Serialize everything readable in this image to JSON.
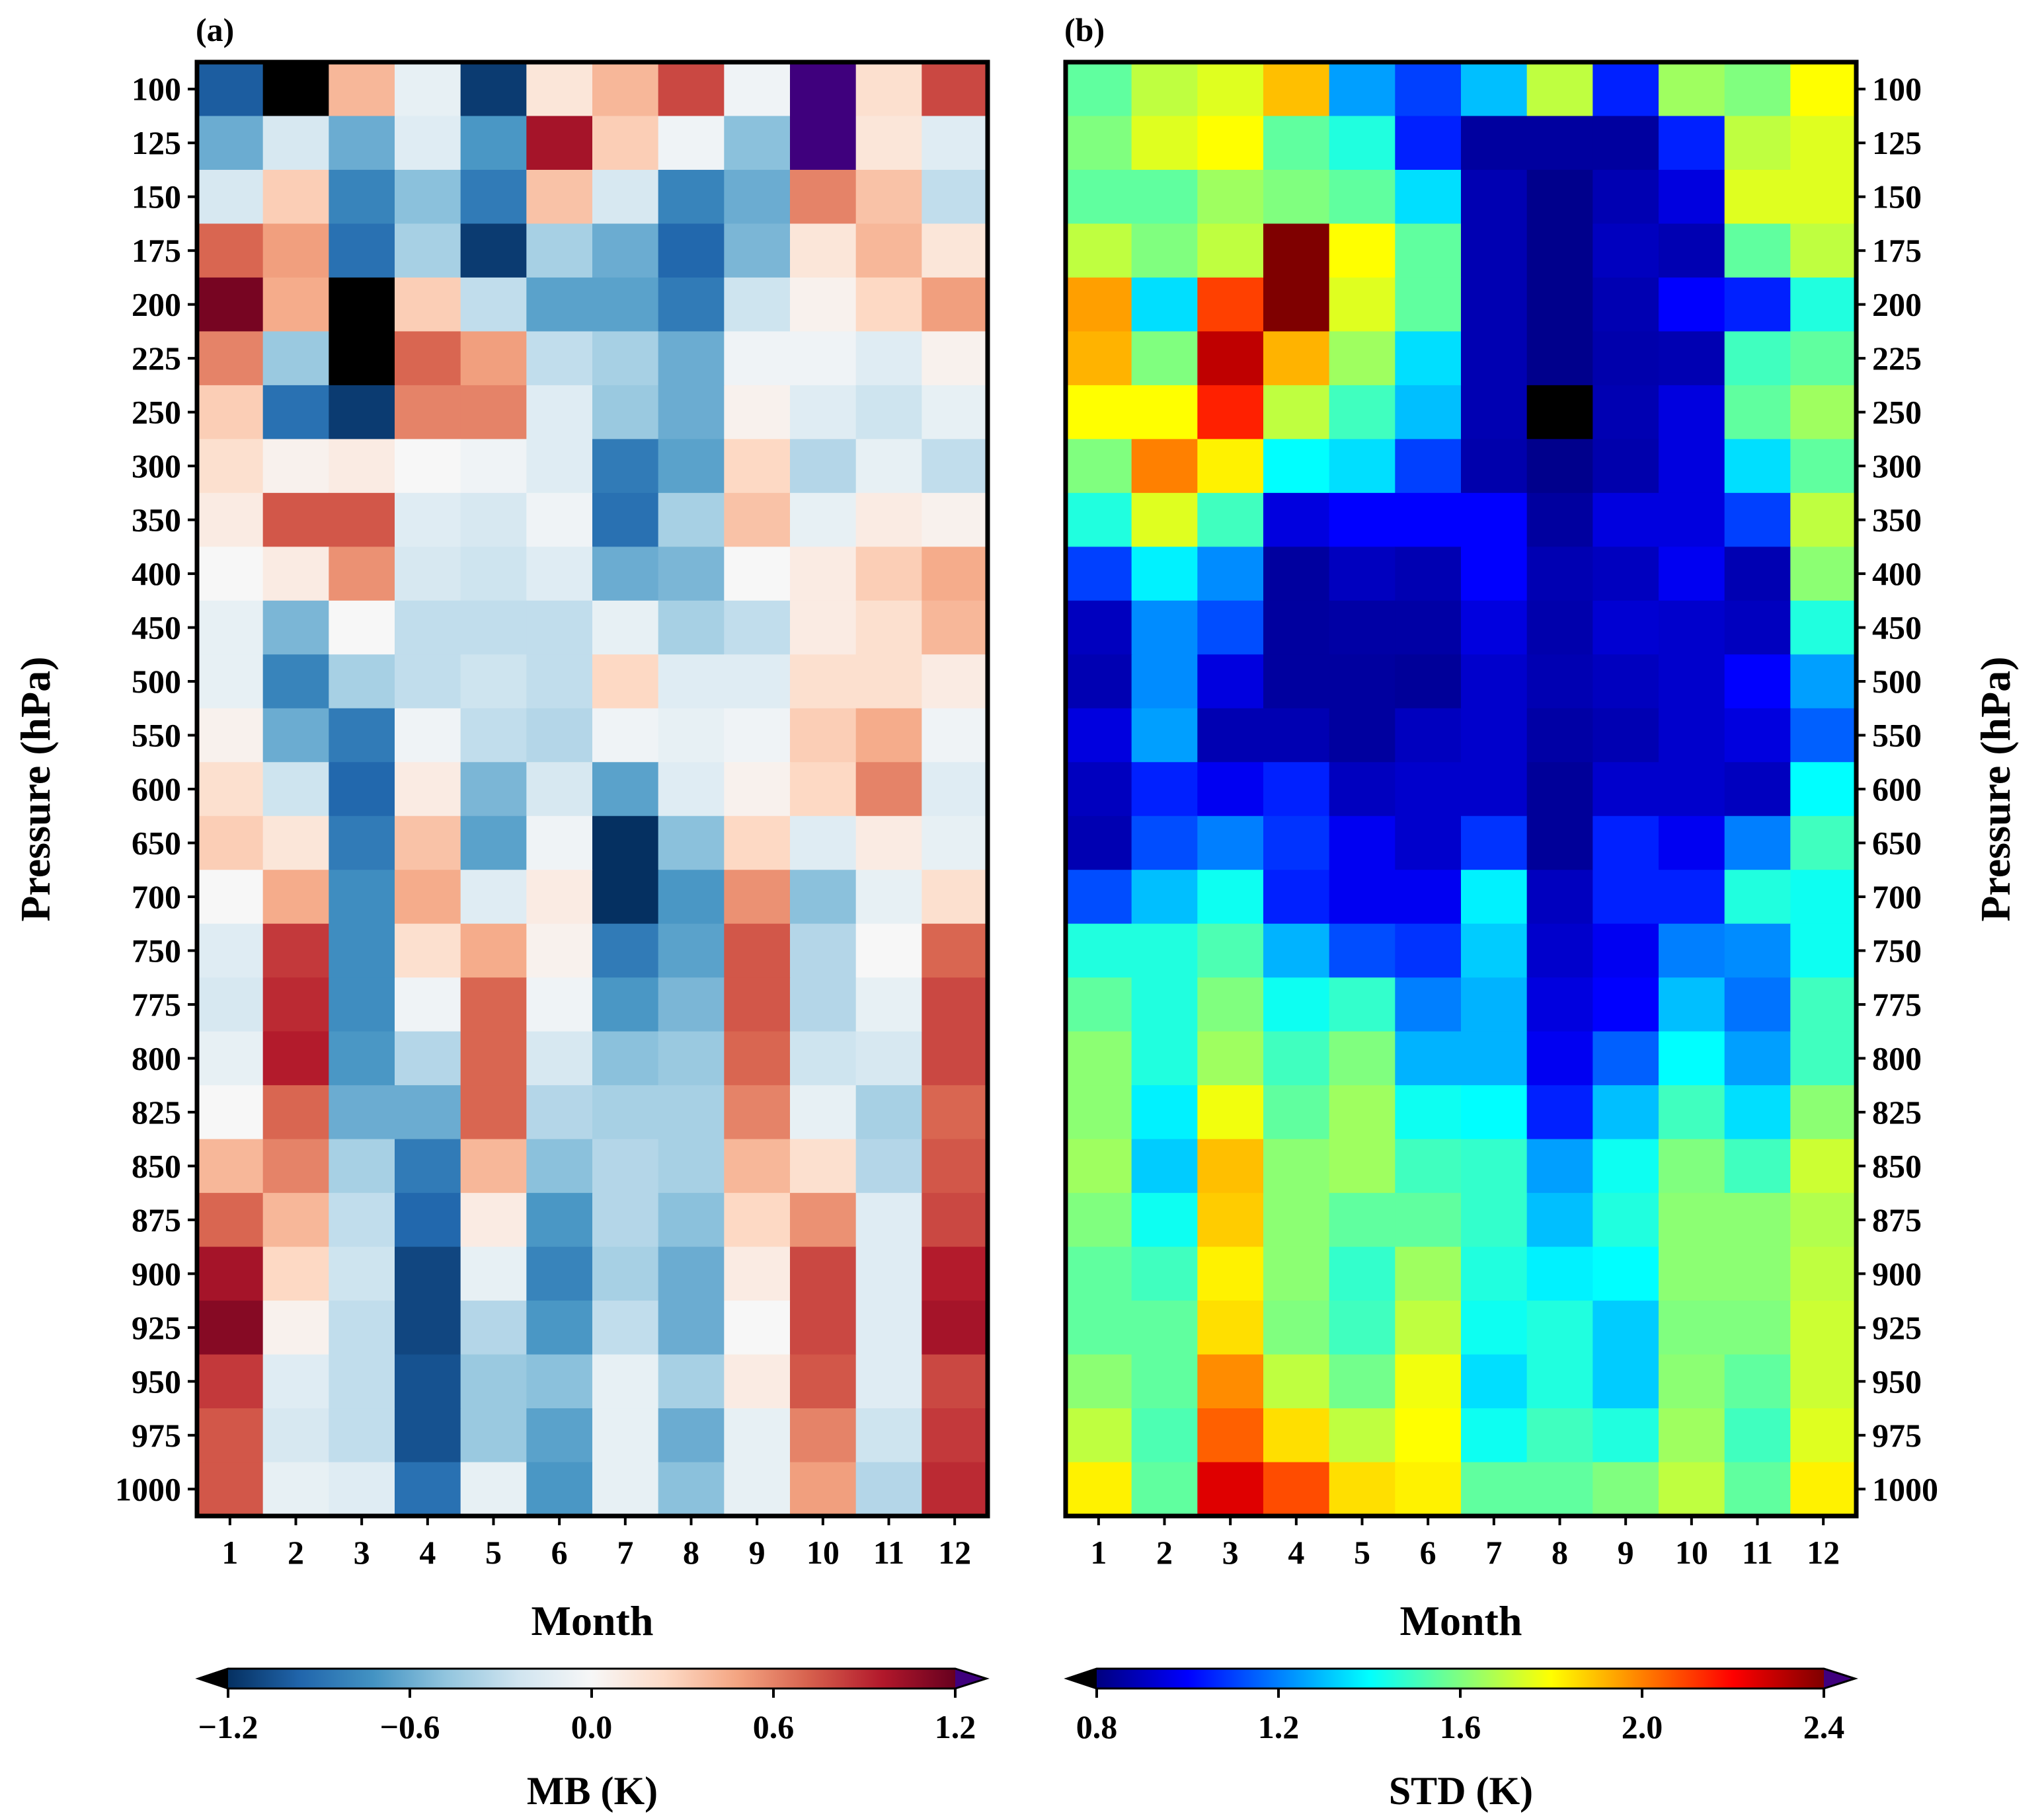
{
  "chart_data": [
    {
      "type": "heatmap",
      "panel_label": "(a)",
      "xlabel": "Month",
      "ylabel": "Pressure (hPa)",
      "colorbar_label": "MB (K)",
      "colormap": "RdBu_r",
      "vmin": -1.2,
      "vmax": 1.2,
      "colorbar_ticks": [
        "−1.2",
        "−0.6",
        "0.0",
        "0.6",
        "1.2"
      ],
      "x": [
        "1",
        "2",
        "3",
        "4",
        "5",
        "6",
        "7",
        "8",
        "9",
        "10",
        "11",
        "12"
      ],
      "y": [
        "100",
        "125",
        "150",
        "175",
        "200",
        "225",
        "250",
        "300",
        "350",
        "400",
        "450",
        "500",
        "550",
        "600",
        "650",
        "700",
        "750",
        "775",
        "800",
        "825",
        "850",
        "875",
        "900",
        "925",
        "950",
        "975",
        "1000"
      ],
      "values": [
        [
          -1.0,
          -1.4,
          0.4,
          -0.1,
          -1.15,
          0.15,
          0.4,
          0.8,
          -0.05,
          1.4,
          0.2,
          0.8
        ],
        [
          -0.6,
          -0.2,
          -0.6,
          -0.15,
          -0.7,
          1.0,
          0.3,
          -0.05,
          -0.5,
          1.5,
          0.15,
          -0.15
        ],
        [
          -0.2,
          0.3,
          -0.8,
          -0.5,
          -0.85,
          0.35,
          -0.2,
          -0.8,
          -0.6,
          0.6,
          0.35,
          -0.3
        ],
        [
          0.7,
          0.5,
          -0.9,
          -0.4,
          -1.15,
          -0.4,
          -0.6,
          -0.95,
          -0.55,
          0.15,
          0.4,
          0.15
        ],
        [
          1.15,
          0.45,
          -1.4,
          0.3,
          -0.3,
          -0.65,
          -0.65,
          -0.85,
          -0.25,
          0.05,
          0.25,
          0.5
        ],
        [
          0.6,
          -0.45,
          -1.4,
          0.7,
          0.5,
          -0.3,
          -0.4,
          -0.6,
          -0.05,
          -0.05,
          -0.15,
          0.05
        ],
        [
          0.3,
          -0.9,
          -1.15,
          0.6,
          0.6,
          -0.15,
          -0.45,
          -0.6,
          0.05,
          -0.15,
          -0.25,
          -0.1
        ],
        [
          0.2,
          0.05,
          0.1,
          0.0,
          -0.05,
          -0.15,
          -0.85,
          -0.65,
          0.25,
          -0.35,
          -0.1,
          -0.3
        ],
        [
          0.1,
          0.75,
          0.75,
          -0.15,
          -0.2,
          -0.05,
          -0.9,
          -0.4,
          0.35,
          -0.1,
          0.1,
          0.05
        ],
        [
          0.0,
          0.1,
          0.55,
          -0.2,
          -0.25,
          -0.15,
          -0.6,
          -0.55,
          0.0,
          0.1,
          0.3,
          0.45
        ],
        [
          -0.1,
          -0.55,
          0.0,
          -0.3,
          -0.3,
          -0.3,
          -0.1,
          -0.4,
          -0.3,
          0.1,
          0.2,
          0.4
        ],
        [
          -0.1,
          -0.8,
          -0.4,
          -0.3,
          -0.25,
          -0.3,
          0.25,
          -0.15,
          -0.15,
          0.2,
          0.2,
          0.1
        ],
        [
          0.05,
          -0.6,
          -0.85,
          -0.05,
          -0.3,
          -0.35,
          -0.05,
          -0.1,
          -0.05,
          0.3,
          0.45,
          -0.05
        ],
        [
          0.2,
          -0.25,
          -0.95,
          0.1,
          -0.55,
          -0.2,
          -0.65,
          -0.15,
          0.05,
          0.25,
          0.6,
          -0.15
        ],
        [
          0.3,
          0.15,
          -0.85,
          0.35,
          -0.65,
          -0.05,
          -1.2,
          -0.5,
          0.25,
          -0.15,
          0.1,
          -0.1
        ],
        [
          0.0,
          0.45,
          -0.75,
          0.45,
          -0.15,
          0.1,
          -1.2,
          -0.7,
          0.55,
          -0.5,
          -0.1,
          0.2
        ],
        [
          -0.15,
          0.85,
          -0.75,
          0.2,
          0.45,
          0.05,
          -0.85,
          -0.65,
          0.75,
          -0.35,
          0.0,
          0.7
        ],
        [
          -0.2,
          0.9,
          -0.75,
          -0.05,
          0.7,
          -0.05,
          -0.7,
          -0.55,
          0.75,
          -0.35,
          -0.1,
          0.8
        ],
        [
          -0.1,
          0.95,
          -0.7,
          -0.35,
          0.7,
          -0.2,
          -0.5,
          -0.45,
          0.7,
          -0.25,
          -0.2,
          0.8
        ],
        [
          0.0,
          0.7,
          -0.6,
          -0.6,
          0.7,
          -0.35,
          -0.4,
          -0.4,
          0.6,
          -0.1,
          -0.4,
          0.7
        ],
        [
          0.4,
          0.6,
          -0.4,
          -0.85,
          0.4,
          -0.5,
          -0.35,
          -0.4,
          0.4,
          0.2,
          -0.35,
          0.75
        ],
        [
          0.7,
          0.4,
          -0.3,
          -0.95,
          0.1,
          -0.7,
          -0.35,
          -0.5,
          0.25,
          0.55,
          -0.15,
          0.8
        ],
        [
          1.0,
          0.25,
          -0.25,
          -1.1,
          -0.1,
          -0.8,
          -0.4,
          -0.6,
          0.1,
          0.8,
          -0.15,
          0.95
        ],
        [
          1.1,
          0.05,
          -0.3,
          -1.1,
          -0.35,
          -0.7,
          -0.3,
          -0.6,
          0.0,
          0.8,
          -0.15,
          1.0
        ],
        [
          0.85,
          -0.15,
          -0.3,
          -1.05,
          -0.45,
          -0.5,
          -0.1,
          -0.4,
          0.1,
          0.75,
          -0.15,
          0.8
        ],
        [
          0.75,
          -0.2,
          -0.3,
          -1.05,
          -0.45,
          -0.65,
          -0.1,
          -0.6,
          -0.1,
          0.6,
          -0.25,
          0.85
        ],
        [
          0.75,
          -0.1,
          -0.15,
          -0.9,
          -0.1,
          -0.7,
          -0.1,
          -0.5,
          -0.1,
          0.5,
          -0.35,
          0.9
        ]
      ]
    },
    {
      "type": "heatmap",
      "panel_label": "(b)",
      "xlabel": "Month",
      "ylabel": "Pressure (hPa)",
      "colorbar_label": "STD (K)",
      "colormap": "jet",
      "vmin": 0.8,
      "vmax": 2.4,
      "colorbar_ticks": [
        "0.8",
        "1.2",
        "1.6",
        "2.0",
        "2.4"
      ],
      "x": [
        "1",
        "2",
        "3",
        "4",
        "5",
        "6",
        "7",
        "8",
        "9",
        "10",
        "11",
        "12"
      ],
      "y": [
        "100",
        "125",
        "150",
        "175",
        "200",
        "225",
        "250",
        "300",
        "350",
        "400",
        "450",
        "500",
        "550",
        "600",
        "650",
        "700",
        "750",
        "775",
        "800",
        "825",
        "850",
        "875",
        "900",
        "925",
        "950",
        "975",
        "1000"
      ],
      "values": [
        [
          1.55,
          1.7,
          1.75,
          1.9,
          1.25,
          1.1,
          1.3,
          1.7,
          1.05,
          1.65,
          1.6,
          1.8
        ],
        [
          1.6,
          1.75,
          1.8,
          1.55,
          1.45,
          1.05,
          0.85,
          0.85,
          0.85,
          1.05,
          1.7,
          1.75
        ],
        [
          1.55,
          1.55,
          1.65,
          1.6,
          1.55,
          1.35,
          0.88,
          0.82,
          0.88,
          0.95,
          1.75,
          1.75
        ],
        [
          1.7,
          1.6,
          1.7,
          2.4,
          1.8,
          1.55,
          0.88,
          0.82,
          0.9,
          0.88,
          1.55,
          1.7
        ],
        [
          1.95,
          1.35,
          2.1,
          2.4,
          1.75,
          1.55,
          0.88,
          0.82,
          0.88,
          1.0,
          1.05,
          1.45
        ],
        [
          1.92,
          1.6,
          2.3,
          1.92,
          1.65,
          1.35,
          0.88,
          0.82,
          0.87,
          0.88,
          1.5,
          1.55
        ],
        [
          1.8,
          1.8,
          2.15,
          1.7,
          1.5,
          1.3,
          0.88,
          0.78,
          0.88,
          0.95,
          1.55,
          1.65
        ],
        [
          1.6,
          2.0,
          1.82,
          1.4,
          1.35,
          1.1,
          0.87,
          0.82,
          0.87,
          0.95,
          1.35,
          1.55
        ],
        [
          1.45,
          1.75,
          1.5,
          0.95,
          1.0,
          1.0,
          1.0,
          0.85,
          0.95,
          0.95,
          1.1,
          1.7
        ],
        [
          1.1,
          1.38,
          1.22,
          0.85,
          0.9,
          0.88,
          1.0,
          0.88,
          0.9,
          0.98,
          0.88,
          1.62
        ],
        [
          0.9,
          1.22,
          1.12,
          0.85,
          0.86,
          0.86,
          0.95,
          0.87,
          0.93,
          0.92,
          0.9,
          1.45
        ],
        [
          0.88,
          1.22,
          0.95,
          0.85,
          0.85,
          0.84,
          0.92,
          0.88,
          0.9,
          0.92,
          1.0,
          1.25
        ],
        [
          0.95,
          1.25,
          0.88,
          0.88,
          0.85,
          0.9,
          0.92,
          0.86,
          0.88,
          0.92,
          0.95,
          1.15
        ],
        [
          0.9,
          1.05,
          0.98,
          1.05,
          0.9,
          0.92,
          0.92,
          0.84,
          0.92,
          0.92,
          0.9,
          1.4
        ],
        [
          0.88,
          1.12,
          1.2,
          1.08,
          0.98,
          0.92,
          1.08,
          0.84,
          1.05,
          0.98,
          1.2,
          1.5
        ],
        [
          1.12,
          1.3,
          1.42,
          1.05,
          0.98,
          0.98,
          1.38,
          0.9,
          1.05,
          1.05,
          1.45,
          1.42
        ],
        [
          1.45,
          1.45,
          1.52,
          1.28,
          1.12,
          1.08,
          1.32,
          0.92,
          0.98,
          1.2,
          1.22,
          1.42
        ],
        [
          1.55,
          1.45,
          1.6,
          1.42,
          1.48,
          1.2,
          1.28,
          0.95,
          1.0,
          1.3,
          1.18,
          1.5
        ],
        [
          1.62,
          1.45,
          1.65,
          1.5,
          1.6,
          1.28,
          1.28,
          0.98,
          1.15,
          1.4,
          1.25,
          1.5
        ],
        [
          1.62,
          1.38,
          1.78,
          1.55,
          1.65,
          1.42,
          1.4,
          1.05,
          1.3,
          1.5,
          1.35,
          1.62
        ],
        [
          1.65,
          1.32,
          1.9,
          1.62,
          1.65,
          1.5,
          1.48,
          1.25,
          1.42,
          1.6,
          1.5,
          1.72
        ],
        [
          1.6,
          1.42,
          1.88,
          1.62,
          1.55,
          1.55,
          1.48,
          1.3,
          1.45,
          1.62,
          1.62,
          1.68
        ],
        [
          1.55,
          1.5,
          1.82,
          1.62,
          1.48,
          1.65,
          1.45,
          1.38,
          1.4,
          1.62,
          1.62,
          1.7
        ],
        [
          1.55,
          1.55,
          1.85,
          1.6,
          1.5,
          1.7,
          1.42,
          1.45,
          1.32,
          1.6,
          1.6,
          1.72
        ],
        [
          1.62,
          1.55,
          1.98,
          1.7,
          1.58,
          1.78,
          1.35,
          1.45,
          1.32,
          1.62,
          1.55,
          1.72
        ],
        [
          1.7,
          1.52,
          2.05,
          1.85,
          1.7,
          1.8,
          1.42,
          1.5,
          1.45,
          1.65,
          1.5,
          1.75
        ],
        [
          1.82,
          1.55,
          2.25,
          2.08,
          1.85,
          1.82,
          1.55,
          1.55,
          1.6,
          1.7,
          1.55,
          1.82
        ]
      ]
    }
  ]
}
